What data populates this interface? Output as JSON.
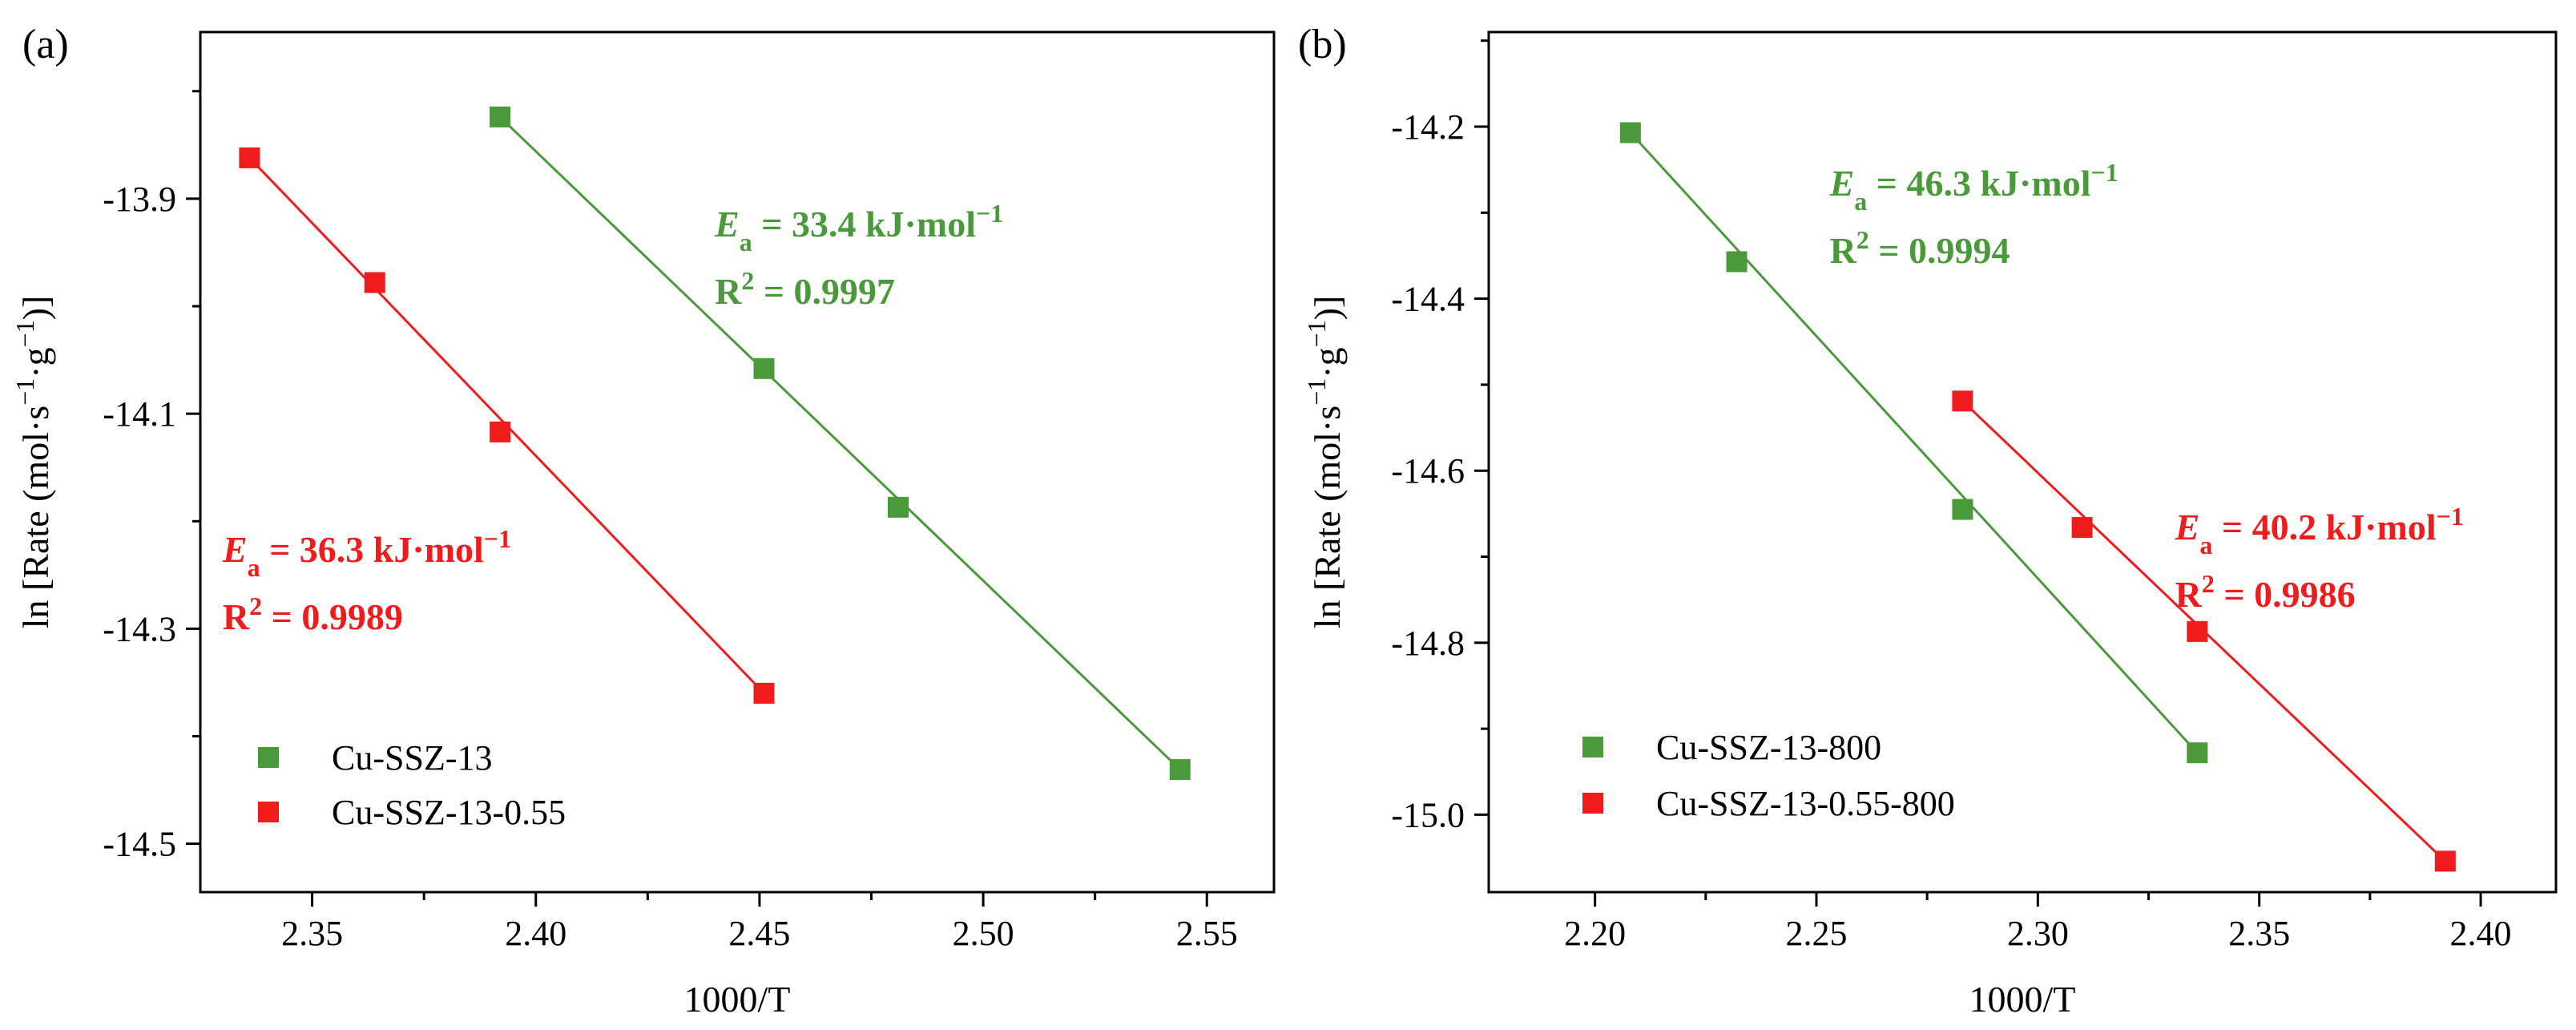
{
  "chart_data": [
    {
      "panel_label": "(a)",
      "type": "scatter",
      "xlabel": "1000/T",
      "ylabel": {
        "prefix": "ln [Rate (mol·s",
        "exp1": "−1",
        "mid": "·g",
        "exp2": "−1",
        "suffix": ")]"
      },
      "xlim": [
        2.325,
        2.565
      ],
      "ylim": [
        -14.545,
        -13.745
      ],
      "xticks": [
        {
          "value": 2.35,
          "label": "2.35"
        },
        {
          "value": 2.4,
          "label": "2.40"
        },
        {
          "value": 2.45,
          "label": "2.45"
        },
        {
          "value": 2.5,
          "label": "2.50"
        },
        {
          "value": 2.55,
          "label": "2.55"
        }
      ],
      "yticks": [
        {
          "value": -13.9,
          "label": "-13.9"
        },
        {
          "value": -14.1,
          "label": "-14.1"
        },
        {
          "value": -14.3,
          "label": "-14.3"
        },
        {
          "value": -14.5,
          "label": "-14.5"
        }
      ],
      "legend_position": "bottom-left",
      "series": [
        {
          "name": "Cu-SSZ-13",
          "color": "#4a9a3c",
          "points": [
            [
              2.392,
              -13.824
            ],
            [
              2.451,
              -14.058
            ],
            [
              2.481,
              -14.187
            ],
            [
              2.544,
              -14.431
            ]
          ],
          "fit": [
            [
              2.392,
              -13.824
            ],
            [
              2.544,
              -14.431
            ]
          ],
          "annotation": {
            "ea_sym": "E",
            "ea_sub": "a",
            "ea_value": " = 33.4 kJ·mol",
            "ea_exp": "−1",
            "r2_sym": "R",
            "r2_exp": "2",
            "r2_value": " = 0.9997",
            "anchor": [
              2.44,
              -13.935
            ]
          }
        },
        {
          "name": "Cu-SSZ-13-0.55",
          "color": "#ee1c1c",
          "points": [
            [
              2.336,
              -13.862
            ],
            [
              2.364,
              -13.978
            ],
            [
              2.392,
              -14.117
            ],
            [
              2.451,
              -14.36
            ]
          ],
          "fit": [
            [
              2.336,
              -13.862
            ],
            [
              2.451,
              -14.36
            ]
          ],
          "annotation": {
            "ea_sym": "E",
            "ea_sub": "a",
            "ea_value": " = 36.3 kJ·mol",
            "ea_exp": "−1",
            "r2_sym": "R",
            "r2_exp": "2",
            "r2_value": " = 0.9989",
            "anchor": [
              2.33,
              -14.238
            ]
          }
        }
      ]
    },
    {
      "panel_label": "(b)",
      "type": "scatter",
      "xlabel": "1000/T",
      "ylabel": {
        "prefix": "ln [Rate (mol·s",
        "exp1": "−1",
        "mid": "·g",
        "exp2": "−1",
        "suffix": ")]"
      },
      "xlim": [
        2.176,
        2.417
      ],
      "ylim": [
        -15.09,
        -14.09
      ],
      "xticks": [
        {
          "value": 2.2,
          "label": "2.20"
        },
        {
          "value": 2.25,
          "label": "2.25"
        },
        {
          "value": 2.3,
          "label": "2.30"
        },
        {
          "value": 2.35,
          "label": "2.35"
        },
        {
          "value": 2.4,
          "label": "2.40"
        }
      ],
      "yticks": [
        {
          "value": -14.2,
          "label": "-14.2"
        },
        {
          "value": -14.4,
          "label": "-14.4"
        },
        {
          "value": -14.6,
          "label": "-14.6"
        },
        {
          "value": -14.8,
          "label": "-14.8"
        },
        {
          "value": -15.0,
          "label": "-15.0"
        }
      ],
      "legend_position": "bottom-left",
      "series": [
        {
          "name": "Cu-SSZ-13-800",
          "color": "#4a9a3c",
          "points": [
            [
              2.208,
              -14.207
            ],
            [
              2.232,
              -14.357
            ],
            [
              2.283,
              -14.645
            ],
            [
              2.336,
              -14.928
            ]
          ],
          "fit": [
            [
              2.208,
              -14.207
            ],
            [
              2.336,
              -14.928
            ]
          ],
          "annotation": {
            "ea_sym": "E",
            "ea_sub": "a",
            "ea_value": " = 46.3 kJ·mol",
            "ea_exp": "−1",
            "r2_sym": "R",
            "r2_exp": "2",
            "r2_value": " = 0.9994",
            "anchor": [
              2.253,
              -14.28
            ]
          }
        },
        {
          "name": "Cu-SSZ-13-0.55-800",
          "color": "#ee1c1c",
          "points": [
            [
              2.283,
              -14.519
            ],
            [
              2.31,
              -14.666
            ],
            [
              2.336,
              -14.787
            ],
            [
              2.392,
              -15.054
            ]
          ],
          "fit": [
            [
              2.283,
              -14.519
            ],
            [
              2.392,
              -15.054
            ]
          ],
          "annotation": {
            "ea_sym": "E",
            "ea_sub": "a",
            "ea_value": " = 40.2 kJ·mol",
            "ea_exp": "−1",
            "r2_sym": "R",
            "r2_exp": "2",
            "r2_value": " = 0.9986",
            "anchor": [
              2.331,
              -14.68
            ]
          }
        }
      ]
    }
  ]
}
